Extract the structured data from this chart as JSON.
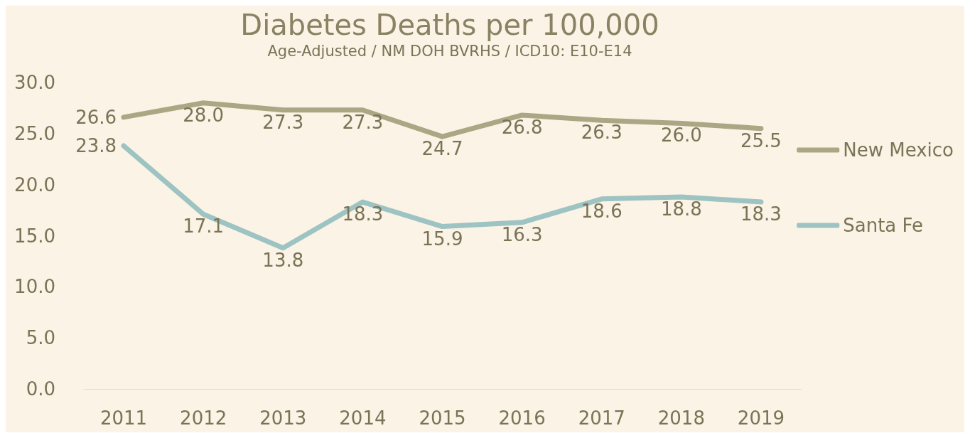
{
  "chart_data": {
    "type": "line",
    "title": "Diabetes Deaths per 100,000",
    "subtitle": "Age-Adjusted / NM DOH BVRHS / ICD10: E10-E14",
    "categories": [
      "2011",
      "2012",
      "2013",
      "2014",
      "2015",
      "2016",
      "2017",
      "2018",
      "2019"
    ],
    "series": [
      {
        "name": "New Mexico",
        "color": "#aba784",
        "values": [
          26.6,
          28.0,
          27.3,
          27.3,
          24.7,
          26.8,
          26.3,
          26.0,
          25.5
        ],
        "value_labels": [
          "26.6",
          "28.0",
          "27.3",
          "27.3",
          "24.7",
          "26.8",
          "26.3",
          "26.0",
          "25.5"
        ]
      },
      {
        "name": "Santa Fe",
        "color": "#9dc3c2",
        "values": [
          23.8,
          17.1,
          13.8,
          18.3,
          15.9,
          16.3,
          18.6,
          18.8,
          18.3
        ],
        "value_labels": [
          "23.8",
          "17.1",
          "13.8",
          "18.3",
          "15.9",
          "16.3",
          "18.6",
          "18.8",
          "18.3"
        ]
      }
    ],
    "ylim": [
      0,
      30
    ],
    "yticks": [
      {
        "value": 0,
        "label": "0.0"
      },
      {
        "value": 5,
        "label": "5.0"
      },
      {
        "value": 10,
        "label": "10.0"
      },
      {
        "value": 15,
        "label": "15.0"
      },
      {
        "value": 20,
        "label": "20.0"
      },
      {
        "value": 25,
        "label": "25.0"
      },
      {
        "value": 30,
        "label": "30.0"
      }
    ],
    "grid": false,
    "legend": "right",
    "marker": "none",
    "line_style": "solid"
  }
}
